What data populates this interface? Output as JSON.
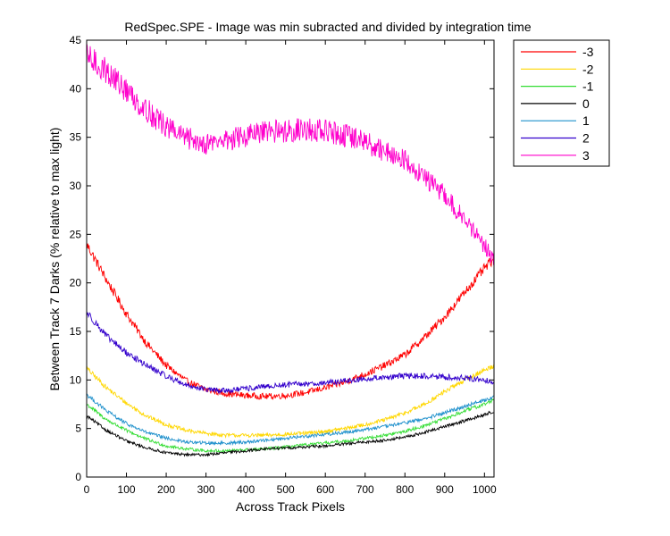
{
  "chart_data": {
    "type": "line",
    "title": "RedSpec.SPE - Image was min subracted and divided by integration time",
    "xlabel": "Across Track Pixels",
    "ylabel": "Between Track 7 Darks (% relative to max light)",
    "xlim": [
      0,
      1024
    ],
    "ylim": [
      0,
      45
    ],
    "xticks": [
      0,
      100,
      200,
      300,
      400,
      500,
      600,
      700,
      800,
      900,
      1000
    ],
    "yticks": [
      0,
      5,
      10,
      15,
      20,
      25,
      30,
      35,
      40,
      45
    ],
    "grid": false,
    "legend_position": "outside-top-right",
    "series": [
      {
        "name": "-3",
        "color": "#ff0000",
        "noise": 0.35,
        "x": [
          0,
          50,
          100,
          150,
          200,
          250,
          300,
          350,
          400,
          450,
          500,
          550,
          600,
          650,
          700,
          750,
          800,
          850,
          900,
          950,
          1000,
          1024
        ],
        "values": [
          24,
          20.3,
          16.8,
          13.8,
          11.5,
          9.9,
          9.0,
          8.6,
          8.4,
          8.3,
          8.4,
          8.7,
          9.2,
          9.8,
          10.6,
          11.5,
          12.6,
          14.4,
          16.5,
          19.0,
          21.5,
          22.5
        ]
      },
      {
        "name": "-2",
        "color": "#ffd700",
        "noise": 0.25,
        "x": [
          0,
          50,
          100,
          150,
          200,
          250,
          300,
          350,
          400,
          450,
          500,
          550,
          600,
          650,
          700,
          750,
          800,
          850,
          900,
          950,
          1000,
          1024
        ],
        "values": [
          11.2,
          9.2,
          7.6,
          6.3,
          5.4,
          4.8,
          4.5,
          4.3,
          4.3,
          4.3,
          4.4,
          4.5,
          4.7,
          5.0,
          5.4,
          5.9,
          6.6,
          7.5,
          8.8,
          10.0,
          11.0,
          11.5
        ]
      },
      {
        "name": "-1",
        "color": "#33dd33",
        "noise": 0.22,
        "x": [
          0,
          50,
          100,
          150,
          200,
          250,
          300,
          350,
          400,
          450,
          500,
          550,
          600,
          650,
          700,
          750,
          800,
          850,
          900,
          950,
          1000,
          1024
        ],
        "values": [
          7.5,
          5.9,
          4.8,
          3.9,
          3.2,
          2.9,
          2.7,
          2.7,
          2.8,
          2.9,
          3.1,
          3.3,
          3.5,
          3.7,
          4.0,
          4.3,
          4.7,
          5.3,
          6.0,
          6.8,
          7.5,
          8.0
        ]
      },
      {
        "name": "0",
        "color": "#000000",
        "noise": 0.2,
        "x": [
          0,
          50,
          100,
          150,
          200,
          250,
          300,
          350,
          400,
          450,
          500,
          550,
          600,
          650,
          700,
          750,
          800,
          850,
          900,
          950,
          1000,
          1024
        ],
        "values": [
          6.3,
          4.8,
          3.7,
          3.0,
          2.5,
          2.3,
          2.3,
          2.5,
          2.7,
          2.9,
          3.0,
          3.1,
          3.2,
          3.4,
          3.6,
          3.8,
          4.1,
          4.6,
          5.2,
          5.8,
          6.4,
          6.8
        ]
      },
      {
        "name": "1",
        "color": "#1e90cc",
        "noise": 0.22,
        "x": [
          0,
          50,
          100,
          150,
          200,
          250,
          300,
          350,
          400,
          450,
          500,
          550,
          600,
          650,
          700,
          750,
          800,
          850,
          900,
          950,
          1000,
          1024
        ],
        "values": [
          8.5,
          6.8,
          5.5,
          4.6,
          4.0,
          3.6,
          3.5,
          3.5,
          3.6,
          3.8,
          4.0,
          4.2,
          4.4,
          4.6,
          4.9,
          5.2,
          5.6,
          6.0,
          6.6,
          7.3,
          7.9,
          8.3
        ]
      },
      {
        "name": "2",
        "color": "#3300cc",
        "noise": 0.3,
        "x": [
          0,
          50,
          100,
          150,
          200,
          250,
          300,
          350,
          400,
          450,
          500,
          550,
          600,
          650,
          700,
          750,
          800,
          850,
          900,
          950,
          1000,
          1024
        ],
        "values": [
          17,
          14.5,
          12.8,
          11.5,
          10.4,
          9.5,
          9.0,
          8.9,
          9.1,
          9.3,
          9.5,
          9.6,
          9.7,
          9.9,
          10.1,
          10.3,
          10.4,
          10.4,
          10.3,
          10.2,
          10.0,
          9.8
        ]
      },
      {
        "name": "3",
        "color": "#ff00cc",
        "noise": 0.6,
        "x": [
          0,
          50,
          100,
          150,
          200,
          250,
          300,
          350,
          400,
          450,
          500,
          550,
          600,
          650,
          700,
          750,
          800,
          850,
          900,
          950,
          1000,
          1024
        ],
        "values": [
          43.3,
          41.8,
          39.8,
          37.8,
          36.1,
          34.9,
          34.4,
          34.7,
          35.1,
          35.5,
          35.7,
          35.8,
          35.6,
          35.2,
          34.5,
          33.6,
          32.6,
          31.0,
          29.0,
          26.5,
          23.8,
          22.5
        ]
      }
    ]
  }
}
